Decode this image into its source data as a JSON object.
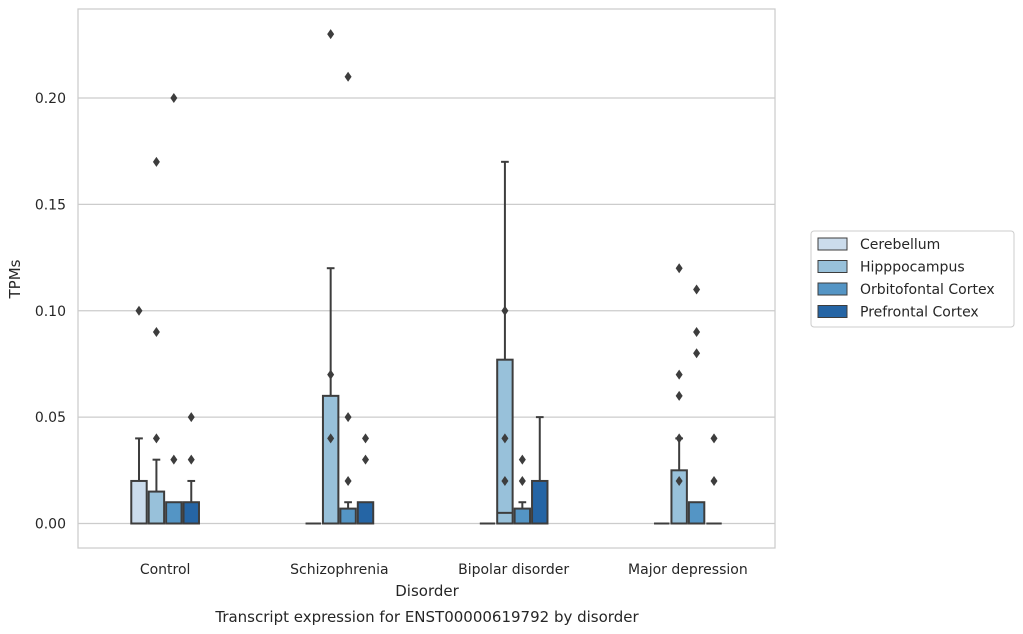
{
  "chart_data": {
    "type": "box",
    "xlabel": "Disorder",
    "ylabel": "TPMs",
    "caption": "Transcript expression for ENST00000619792 by disorder",
    "categories": [
      "Control",
      "Schizophrenia",
      "Bipolar disorder",
      "Major depression"
    ],
    "ylim": [
      -0.011,
      0.242
    ],
    "yticks": [
      "0.00",
      "0.05",
      "0.10",
      "0.15",
      "0.20"
    ],
    "grid": true,
    "legend_position": "right",
    "series": [
      {
        "name": "Cerebellum",
        "color": "#cbdcec",
        "boxes": [
          {
            "q1": 0.0,
            "median": 0.0,
            "q3": 0.02,
            "whisker_low": 0.0,
            "whisker_high": 0.04,
            "outliers": [
              0.1
            ]
          },
          {
            "q1": 0.0,
            "median": 0.0,
            "q3": 0.0,
            "whisker_low": 0.0,
            "whisker_high": 0.0,
            "outliers": []
          },
          {
            "q1": 0.0,
            "median": 0.0,
            "q3": 0.0,
            "whisker_low": 0.0,
            "whisker_high": 0.0,
            "outliers": []
          },
          {
            "q1": 0.0,
            "median": 0.0,
            "q3": 0.0,
            "whisker_low": 0.0,
            "whisker_high": 0.0,
            "outliers": []
          }
        ]
      },
      {
        "name": "Hipppocampus",
        "color": "#98c1da",
        "boxes": [
          {
            "q1": 0.0,
            "median": 0.0,
            "q3": 0.015,
            "whisker_low": 0.0,
            "whisker_high": 0.03,
            "outliers": [
              0.04,
              0.09,
              0.17
            ]
          },
          {
            "q1": 0.0,
            "median": 0.0,
            "q3": 0.06,
            "whisker_low": 0.0,
            "whisker_high": 0.12,
            "outliers": [
              0.04,
              0.07,
              0.23
            ]
          },
          {
            "q1": 0.0,
            "median": 0.005,
            "q3": 0.077,
            "whisker_low": 0.0,
            "whisker_high": 0.17,
            "outliers": [
              0.02,
              0.04,
              0.1
            ]
          },
          {
            "q1": 0.0,
            "median": 0.0,
            "q3": 0.025,
            "whisker_low": 0.0,
            "whisker_high": 0.04,
            "outliers": [
              0.02,
              0.04,
              0.06,
              0.07,
              0.12
            ]
          }
        ]
      },
      {
        "name": "Orbitofontal Cortex",
        "color": "#5495c5",
        "boxes": [
          {
            "q1": 0.0,
            "median": 0.0,
            "q3": 0.01,
            "whisker_low": 0.0,
            "whisker_high": 0.01,
            "outliers": [
              0.03,
              0.2
            ]
          },
          {
            "q1": 0.0,
            "median": 0.0,
            "q3": 0.007,
            "whisker_low": 0.0,
            "whisker_high": 0.01,
            "outliers": [
              0.02,
              0.05,
              0.21
            ]
          },
          {
            "q1": 0.0,
            "median": 0.0,
            "q3": 0.007,
            "whisker_low": 0.0,
            "whisker_high": 0.01,
            "outliers": [
              0.02,
              0.03
            ]
          },
          {
            "q1": 0.0,
            "median": 0.0,
            "q3": 0.01,
            "whisker_low": 0.0,
            "whisker_high": 0.01,
            "outliers": [
              0.08,
              0.09,
              0.11
            ]
          }
        ]
      },
      {
        "name": "Prefrontal Cortex",
        "color": "#2565a5",
        "boxes": [
          {
            "q1": 0.0,
            "median": 0.0,
            "q3": 0.01,
            "whisker_low": 0.0,
            "whisker_high": 0.02,
            "outliers": [
              0.03,
              0.05
            ]
          },
          {
            "q1": 0.0,
            "median": 0.0,
            "q3": 0.01,
            "whisker_low": 0.0,
            "whisker_high": 0.01,
            "outliers": [
              0.03,
              0.04
            ]
          },
          {
            "q1": 0.0,
            "median": 0.0,
            "q3": 0.02,
            "whisker_low": 0.0,
            "whisker_high": 0.05,
            "outliers": []
          },
          {
            "q1": 0.0,
            "median": 0.0,
            "q3": 0.0,
            "whisker_low": 0.0,
            "whisker_high": 0.0,
            "outliers": [
              0.02,
              0.04
            ]
          }
        ]
      }
    ]
  }
}
